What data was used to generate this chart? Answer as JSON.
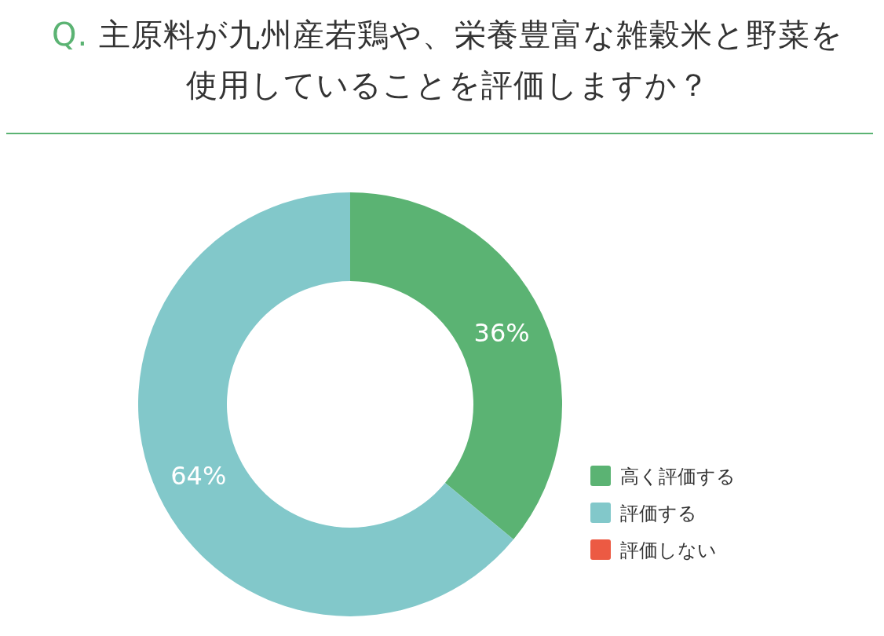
{
  "chart_data": {
    "type": "donut",
    "title": "Q. 主原料が九州産若鶏や、栄養豊富な雑穀米と野菜を使用していることを評価しますか？",
    "categories": [
      "高く評価する",
      "評価する",
      "評価しない"
    ],
    "values": [
      36,
      64,
      0
    ],
    "value_labels": [
      "36%",
      "64%",
      null
    ],
    "colors": [
      "#5bb373",
      "#82c8ca",
      "#ec5a43"
    ],
    "legend": "bottom right"
  }
}
